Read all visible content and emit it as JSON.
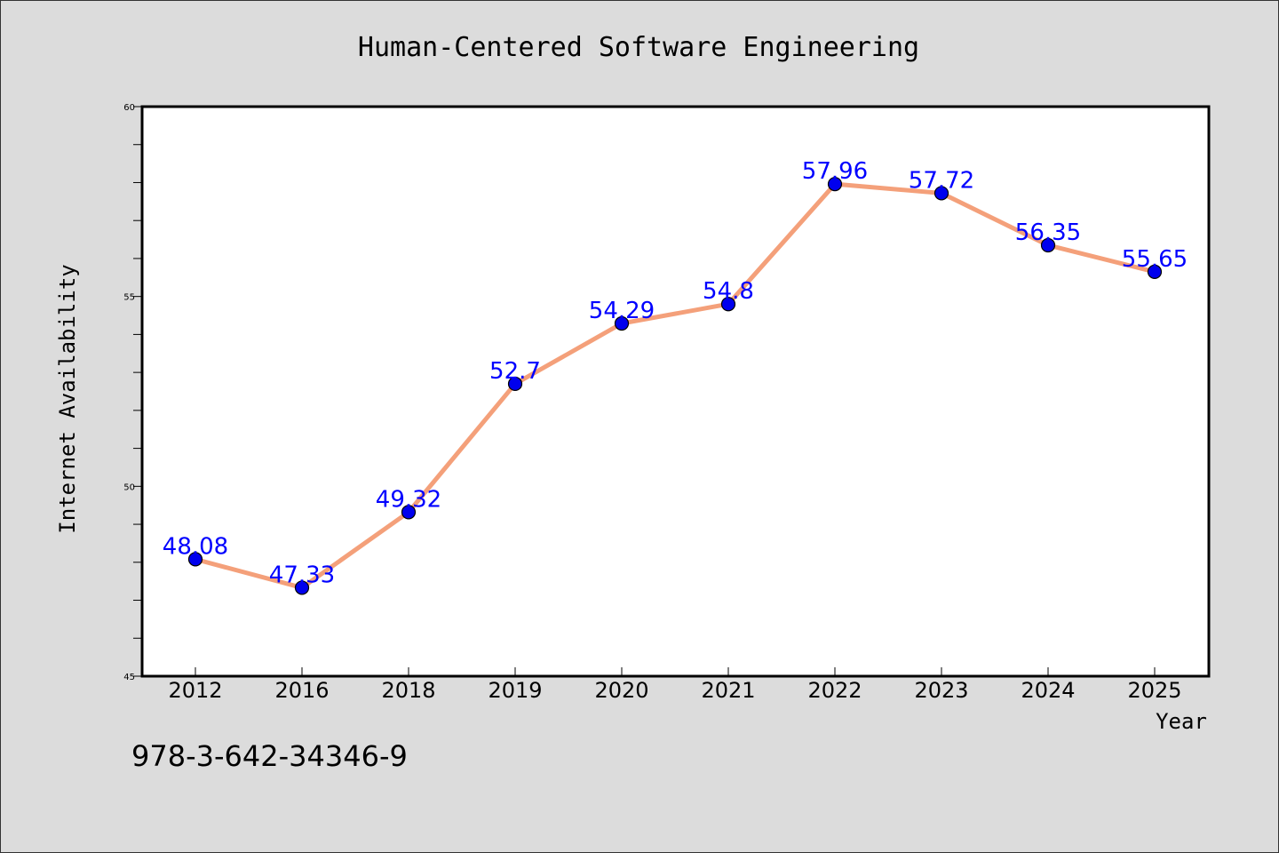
{
  "chart_data": {
    "type": "line",
    "title": "Human-Centered Software Engineering",
    "xlabel": "Year",
    "ylabel": "Internet Availability",
    "categories": [
      "2012",
      "2016",
      "2018",
      "2019",
      "2020",
      "2021",
      "2022",
      "2023",
      "2024",
      "2025"
    ],
    "series": [
      {
        "values": [
          48.08,
          47.33,
          49.32,
          52.7,
          54.29,
          54.8,
          57.96,
          57.72,
          56.35,
          55.65
        ],
        "labels": [
          "48.08",
          "47.33",
          "49.32",
          "52.7",
          "54.29",
          "54.8",
          "57.96",
          "57.72",
          "56.35",
          "55.65"
        ],
        "line_color": "#f4a07a",
        "marker_color": "#0000ee",
        "label_color": "#0000ff"
      }
    ],
    "ylim": [
      45,
      60
    ],
    "yticks": [
      45,
      50,
      55,
      60
    ],
    "ytick_labels": [
      "45",
      "50",
      "55",
      "60"
    ],
    "grid": false,
    "legend": "none",
    "background": "#dcdcdc",
    "plot_background": "#ffffff"
  },
  "footer": {
    "isbn": "978-3-642-34346-9"
  }
}
